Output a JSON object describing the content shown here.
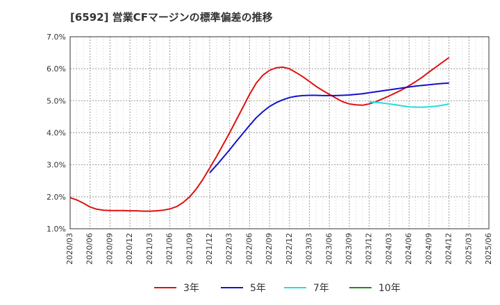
{
  "title": "[6592]  営業CFマージンの標準偏差の推移",
  "chart_data": {
    "type": "line",
    "title": "[6592]  営業CFマージンの標準偏差の推移",
    "xlabel": "",
    "ylabel": "",
    "ylim": [
      1.0,
      7.0
    ],
    "yticks": [
      "1.0%",
      "2.0%",
      "3.0%",
      "4.0%",
      "5.0%",
      "6.0%",
      "7.0%"
    ],
    "x_tick_labels": [
      "2020/03",
      "2020/06",
      "2020/09",
      "2020/12",
      "2021/03",
      "2021/06",
      "2021/09",
      "2021/12",
      "2022/03",
      "2022/06",
      "2022/09",
      "2022/12",
      "2023/03",
      "2023/06",
      "2023/09",
      "2023/12",
      "2024/03",
      "2024/06",
      "2024/09",
      "2024/12",
      "2025/03",
      "2025/06"
    ],
    "grid": true,
    "legend_position": "bottom",
    "series": [
      {
        "name": "3年",
        "color": "#dd1111",
        "x": [
          "2020/03",
          "2020/04",
          "2020/05",
          "2020/06",
          "2020/07",
          "2020/08",
          "2020/09",
          "2020/10",
          "2020/11",
          "2020/12",
          "2021/01",
          "2021/02",
          "2021/03",
          "2021/04",
          "2021/05",
          "2021/06",
          "2021/07",
          "2021/08",
          "2021/09",
          "2021/10",
          "2021/11",
          "2021/12",
          "2022/01",
          "2022/02",
          "2022/03",
          "2022/04",
          "2022/05",
          "2022/06",
          "2022/07",
          "2022/08",
          "2022/09",
          "2022/10",
          "2022/11",
          "2022/12",
          "2023/01",
          "2023/02",
          "2023/03",
          "2023/04",
          "2023/05",
          "2023/06",
          "2023/07",
          "2023/08",
          "2023/09",
          "2023/10",
          "2023/11",
          "2023/12",
          "2024/01",
          "2024/02",
          "2024/03",
          "2024/04",
          "2024/05",
          "2024/06",
          "2024/07",
          "2024/08",
          "2024/09",
          "2024/10",
          "2024/11",
          "2024/12"
        ],
        "values": [
          1.97,
          1.9,
          1.8,
          1.68,
          1.61,
          1.58,
          1.57,
          1.57,
          1.57,
          1.56,
          1.56,
          1.55,
          1.55,
          1.56,
          1.58,
          1.62,
          1.69,
          1.82,
          2.0,
          2.25,
          2.55,
          2.9,
          3.25,
          3.62,
          4.0,
          4.4,
          4.8,
          5.2,
          5.55,
          5.8,
          5.95,
          6.03,
          6.05,
          6.0,
          5.88,
          5.75,
          5.6,
          5.45,
          5.32,
          5.2,
          5.08,
          4.97,
          4.9,
          4.87,
          4.86,
          4.9,
          4.97,
          5.06,
          5.15,
          5.25,
          5.35,
          5.47,
          5.6,
          5.74,
          5.9,
          6.05,
          6.2,
          6.35
        ]
      },
      {
        "name": "5年",
        "color": "#1111cc",
        "x": [
          "2021/12",
          "2022/01",
          "2022/02",
          "2022/03",
          "2022/04",
          "2022/05",
          "2022/06",
          "2022/07",
          "2022/08",
          "2022/09",
          "2022/10",
          "2022/11",
          "2022/12",
          "2023/01",
          "2023/02",
          "2023/03",
          "2023/04",
          "2023/05",
          "2023/06",
          "2023/07",
          "2023/08",
          "2023/09",
          "2023/10",
          "2023/11",
          "2023/12",
          "2024/01",
          "2024/02",
          "2024/03",
          "2024/04",
          "2024/05",
          "2024/06",
          "2024/07",
          "2024/08",
          "2024/09",
          "2024/10",
          "2024/11",
          "2024/12"
        ],
        "values": [
          2.75,
          2.98,
          3.22,
          3.47,
          3.73,
          3.98,
          4.23,
          4.47,
          4.66,
          4.82,
          4.94,
          5.03,
          5.1,
          5.14,
          5.16,
          5.17,
          5.17,
          5.16,
          5.16,
          5.16,
          5.17,
          5.18,
          5.2,
          5.22,
          5.25,
          5.28,
          5.31,
          5.34,
          5.37,
          5.4,
          5.43,
          5.46,
          5.48,
          5.5,
          5.52,
          5.54,
          5.55
        ]
      },
      {
        "name": "7年",
        "color": "#22dddd",
        "x": [
          "2023/12",
          "2024/01",
          "2024/02",
          "2024/03",
          "2024/04",
          "2024/05",
          "2024/06",
          "2024/07",
          "2024/08",
          "2024/09",
          "2024/10",
          "2024/11",
          "2024/12"
        ],
        "values": [
          4.96,
          4.95,
          4.93,
          4.9,
          4.87,
          4.84,
          4.81,
          4.8,
          4.8,
          4.81,
          4.83,
          4.86,
          4.9
        ]
      },
      {
        "name": "10年",
        "color": "#228822",
        "x": [],
        "values": []
      }
    ]
  }
}
